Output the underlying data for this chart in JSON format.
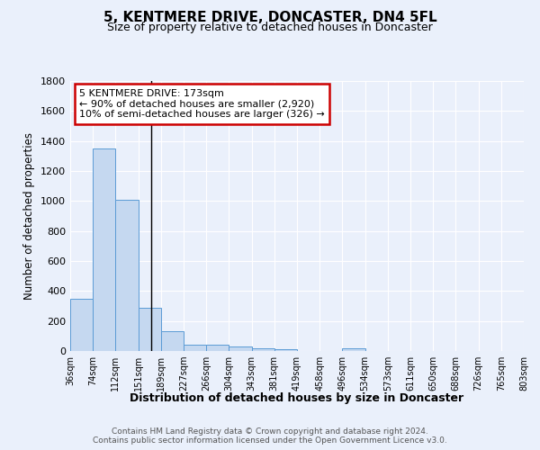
{
  "title": "5, KENTMERE DRIVE, DONCASTER, DN4 5FL",
  "subtitle": "Size of property relative to detached houses in Doncaster",
  "xlabel": "Distribution of detached houses by size in Doncaster",
  "ylabel": "Number of detached properties",
  "bin_labels": [
    "36sqm",
    "74sqm",
    "112sqm",
    "151sqm",
    "189sqm",
    "227sqm",
    "266sqm",
    "304sqm",
    "343sqm",
    "381sqm",
    "419sqm",
    "458sqm",
    "496sqm",
    "534sqm",
    "573sqm",
    "611sqm",
    "650sqm",
    "688sqm",
    "726sqm",
    "765sqm",
    "803sqm"
  ],
  "bar_heights": [
    350,
    1350,
    1010,
    290,
    130,
    45,
    40,
    30,
    20,
    15,
    0,
    0,
    20,
    0,
    0,
    0,
    0,
    0,
    0,
    0
  ],
  "bar_color": "#c5d8f0",
  "bar_edge_color": "#5b9bd5",
  "ylim": [
    0,
    1800
  ],
  "yticks": [
    0,
    200,
    400,
    600,
    800,
    1000,
    1200,
    1400,
    1600,
    1800
  ],
  "property_line_x": 4.0,
  "annotation_line1": "5 KENTMERE DRIVE: 173sqm",
  "annotation_line2": "← 90% of detached houses are smaller (2,920)",
  "annotation_line3": "10% of semi-detached houses are larger (326) →",
  "annotation_box_color": "#ffffff",
  "annotation_box_edge": "#cc0000",
  "footer_line1": "Contains HM Land Registry data © Crown copyright and database right 2024.",
  "footer_line2": "Contains public sector information licensed under the Open Government Licence v3.0.",
  "bg_color": "#eaf0fb",
  "grid_color": "#ffffff"
}
